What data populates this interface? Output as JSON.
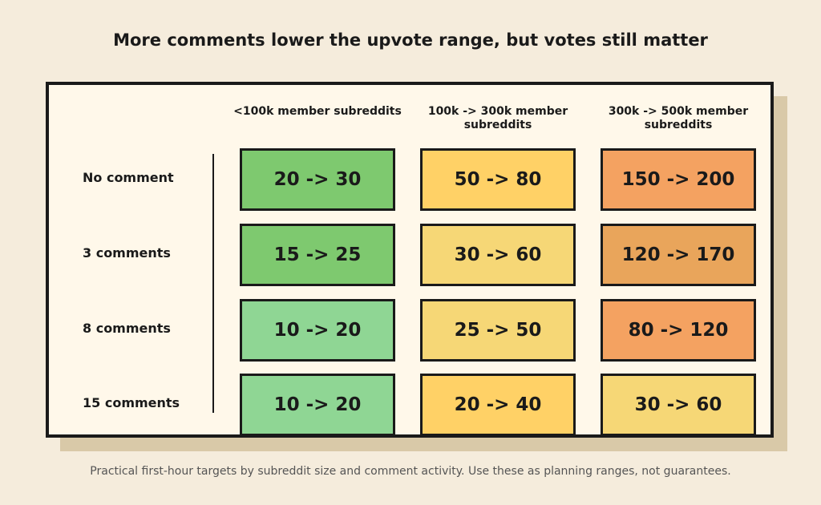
{
  "title": "More comments lower the upvote range, but votes still matter",
  "table": {
    "columns": [
      "<100k member subreddits",
      "100k -> 300k member subreddits",
      "300k -> 500k member subreddits"
    ],
    "rows": [
      {
        "label": "No comment",
        "cells": [
          "20 -> 30",
          "50 -> 80",
          "150 -> 200"
        ],
        "colors": [
          "#7ec96f",
          "#ffd166",
          "#f4a261"
        ]
      },
      {
        "label": "3 comments",
        "cells": [
          "15 -> 25",
          "30 -> 60",
          "120 -> 170"
        ],
        "colors": [
          "#7ec96f",
          "#f6d776",
          "#e9a55b"
        ]
      },
      {
        "label": "8 comments",
        "cells": [
          "10 -> 20",
          "25 -> 50",
          "80 -> 120"
        ],
        "colors": [
          "#8fd694",
          "#f6d776",
          "#f4a261"
        ]
      },
      {
        "label": "15 comments",
        "cells": [
          "10 -> 20",
          "20 -> 40",
          "30 -> 60"
        ],
        "colors": [
          "#8fd694",
          "#ffd166",
          "#f6d776"
        ]
      }
    ]
  },
  "caption": "Practical first-hour targets by subreddit size and comment activity. Use these as planning ranges, not guarantees."
}
